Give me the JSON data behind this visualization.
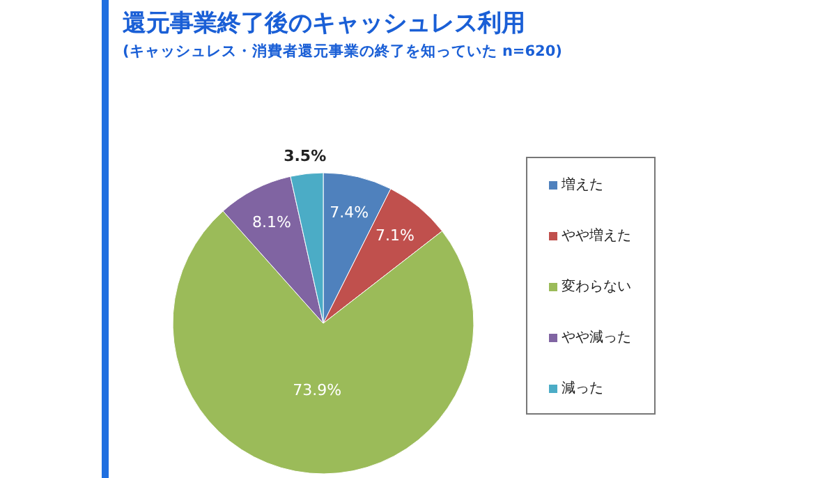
{
  "chart_data": {
    "type": "pie",
    "title": "還元事業終了後のキャッシュレス利用",
    "subtitle": "(キャッシュレス・消費者還元事業の終了を知っていた n=620)",
    "categories": [
      "増えた",
      "やや増えた",
      "変わらない",
      "やや減った",
      "減った"
    ],
    "values": [
      7.4,
      7.1,
      73.9,
      8.1,
      3.5
    ],
    "colors": [
      "#4f81bd",
      "#c0504d",
      "#9bbb59",
      "#8064a2",
      "#4bacc6"
    ],
    "value_labels": [
      "7.4%",
      "7.1%",
      "73.9%",
      "8.1%",
      "3.5%"
    ],
    "legend": "right"
  }
}
